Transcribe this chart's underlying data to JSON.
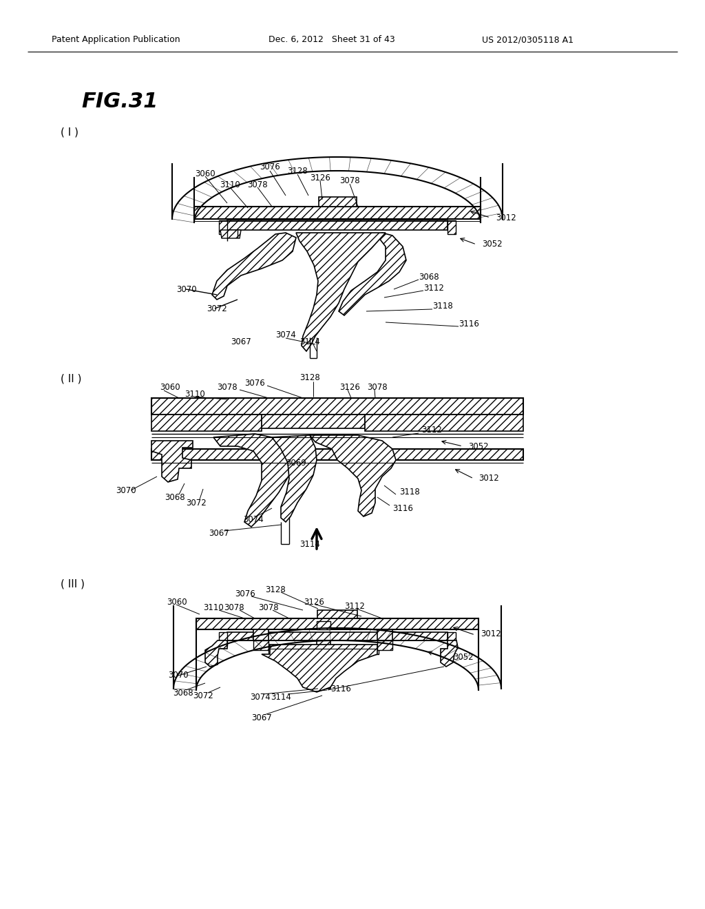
{
  "background_color": "#ffffff",
  "header_left": "Patent Application Publication",
  "header_mid": "Dec. 6, 2012   Sheet 31 of 43",
  "header_right": "US 2012/0305118 A1",
  "fig_title": "FIG.31"
}
